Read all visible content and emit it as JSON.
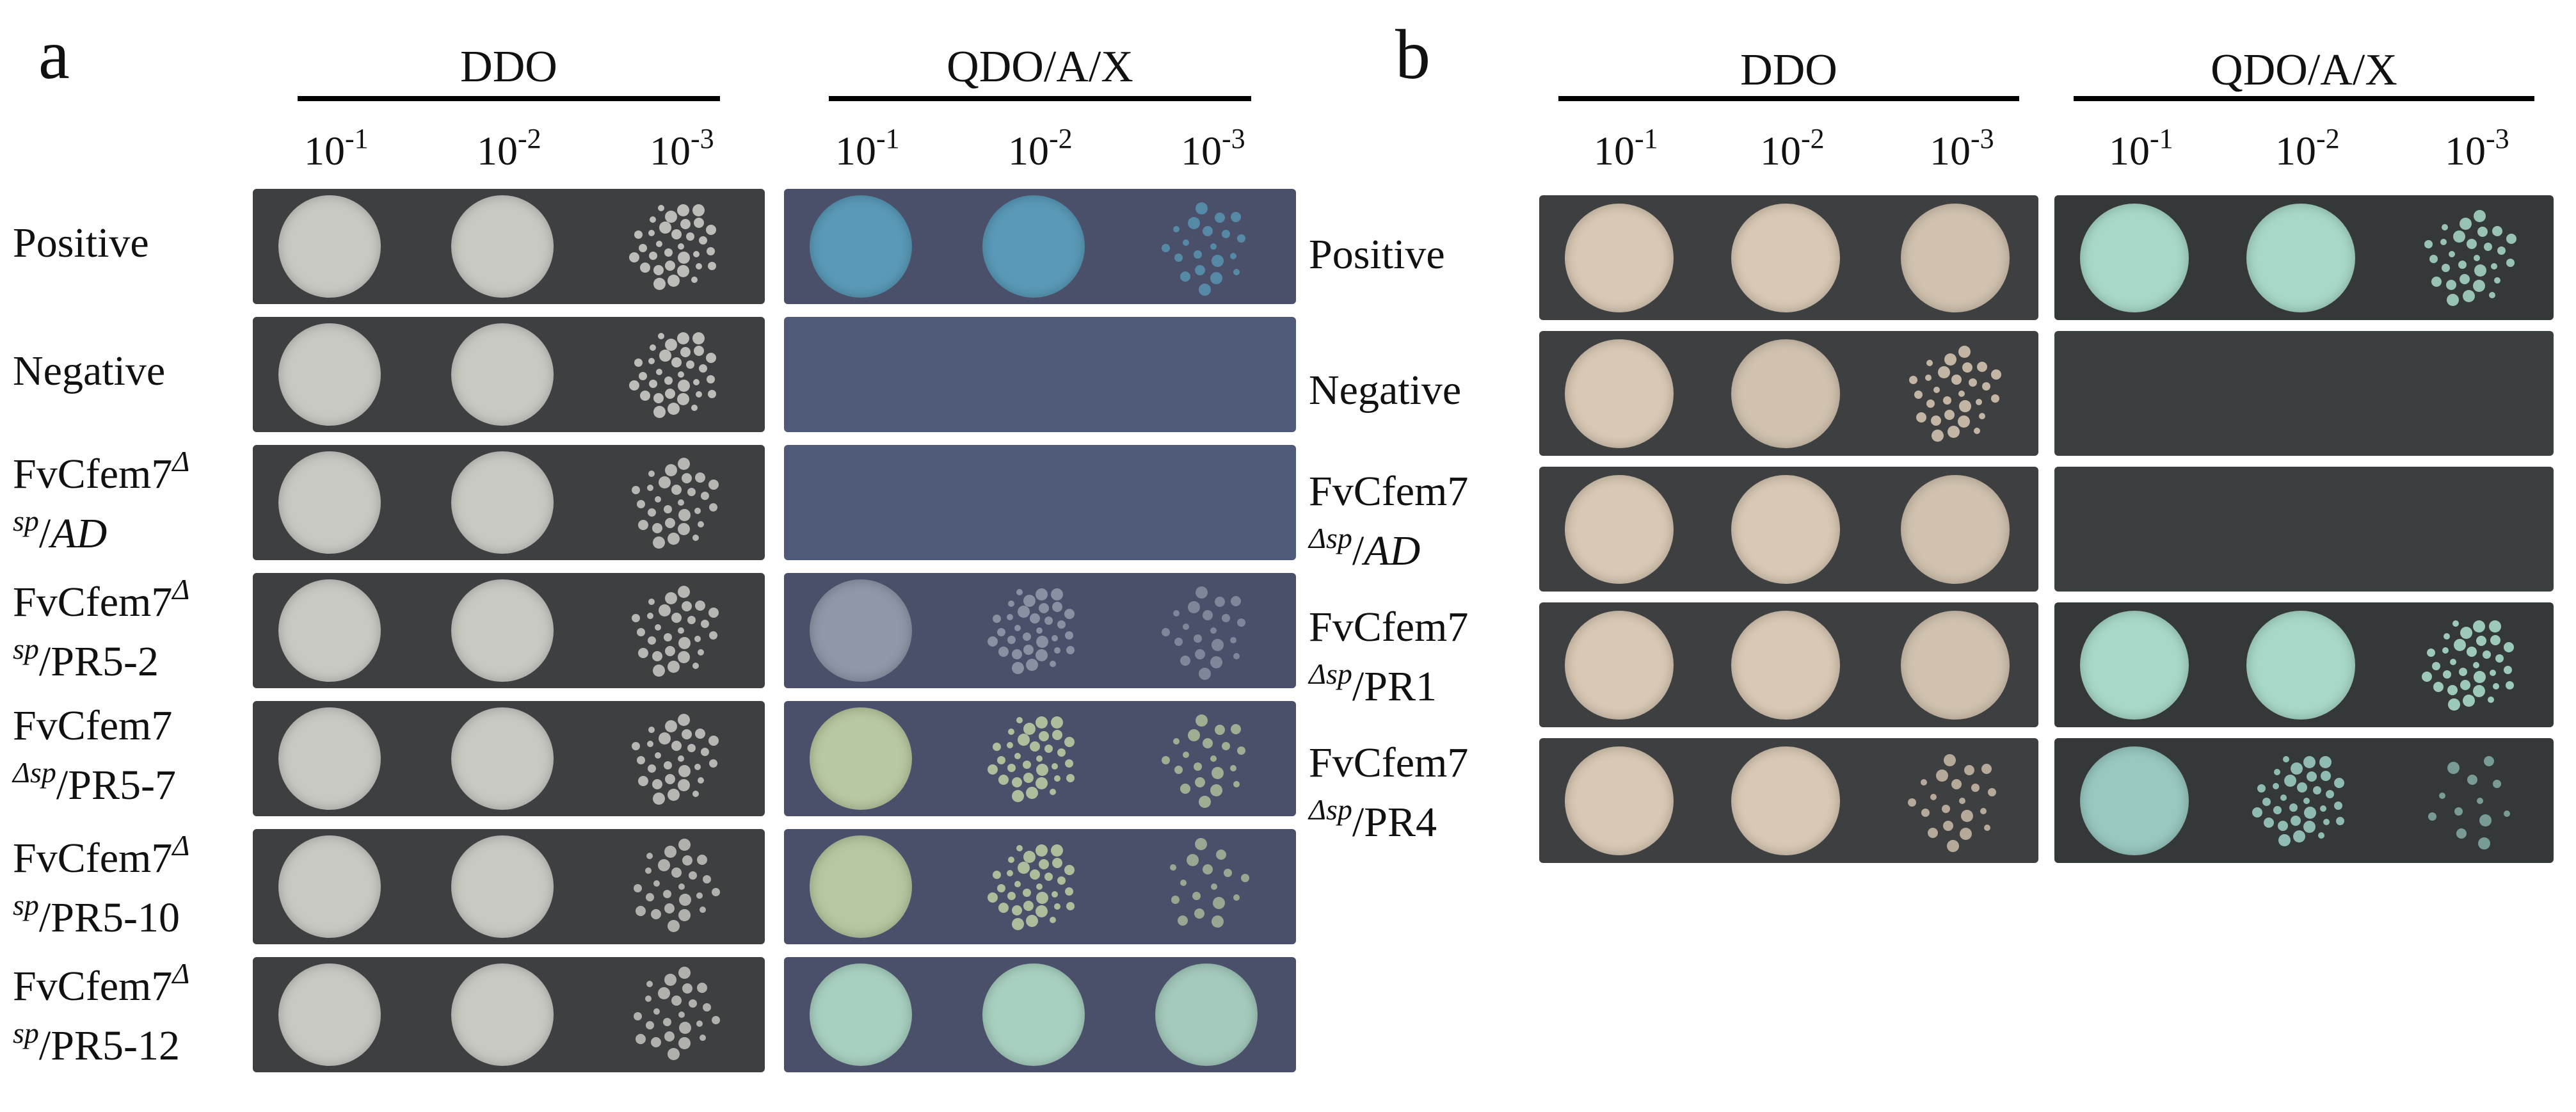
{
  "figure": {
    "panel_a": {
      "letter": "a",
      "group_ddo": "DDO",
      "group_qdo": "QDO/A/X",
      "dilutions": [
        {
          "base": "10",
          "exp": "-1"
        },
        {
          "base": "10",
          "exp": "-2"
        },
        {
          "base": "10",
          "exp": "-3"
        }
      ],
      "rows": [
        {
          "lines": [
            {
              "main": "Positive"
            }
          ],
          "ddo_growth": [
            1,
            1,
            0.8
          ],
          "qdo_growth": [
            1,
            1,
            0.5
          ],
          "qdo_color": "#5a9ab8"
        },
        {
          "lines": [
            {
              "main": "Negative"
            }
          ],
          "ddo_growth": [
            1,
            1,
            0.8
          ],
          "qdo_growth": [
            0,
            0,
            0
          ],
          "qdo_color": "#4f5a78"
        },
        {
          "lines": [
            {
              "main": "FvCfem7",
              "sup": "Δ"
            },
            {
              "sup": "sp",
              "main": "/",
              "italic": "AD"
            }
          ],
          "ddo_growth": [
            1,
            1,
            0.7
          ],
          "qdo_growth": [
            0,
            0,
            0
          ],
          "qdo_color": "#4f5a78"
        },
        {
          "lines": [
            {
              "main": "FvCfem7",
              "sup": "Δ"
            },
            {
              "sup": "sp",
              "main": "/PR5-2"
            }
          ],
          "ddo_growth": [
            1,
            1,
            0.7
          ],
          "qdo_growth": [
            1,
            0.8,
            0.5
          ],
          "qdo_color": "#8e98a8"
        },
        {
          "lines": [
            {
              "main": "FvCfem7"
            },
            {
              "sup": "Δsp",
              "main": "/PR5-7"
            }
          ],
          "ddo_growth": [
            1,
            1,
            0.7
          ],
          "qdo_growth": [
            1,
            0.8,
            0.5
          ],
          "qdo_color": "#b8c8a0"
        },
        {
          "lines": [
            {
              "main": "FvCfem7",
              "sup": "Δ"
            },
            {
              "sup": "sp",
              "main": "/PR5-10"
            }
          ],
          "ddo_growth": [
            1,
            1,
            0.6
          ],
          "qdo_growth": [
            1,
            0.8,
            0.4
          ],
          "qdo_color": "#b6c8a0"
        },
        {
          "lines": [
            {
              "main": "FvCfem7",
              "sup": "Δ"
            },
            {
              "sup": "sp",
              "main": "/PR5-12"
            }
          ],
          "ddo_growth": [
            1,
            1,
            0.6
          ],
          "qdo_growth": [
            1,
            1,
            0.9
          ],
          "qdo_color": "#a8d0c0"
        }
      ]
    },
    "panel_b": {
      "letter": "b",
      "group_ddo": "DDO",
      "group_qdo": "QDO/A/X",
      "dilutions": [
        {
          "base": "10",
          "exp": "-1"
        },
        {
          "base": "10",
          "exp": "-2"
        },
        {
          "base": "10",
          "exp": "-3"
        }
      ],
      "rows": [
        {
          "lines": [
            {
              "main": "Positive"
            }
          ],
          "ddo_growth": [
            1,
            1,
            0.9
          ],
          "qdo_growth": [
            1,
            1,
            0.7
          ],
          "qdo_color": "#a8d8c8"
        },
        {
          "lines": [
            {
              "main": "Negative"
            }
          ],
          "ddo_growth": [
            1,
            0.9,
            0.7
          ],
          "qdo_growth": [
            0,
            0,
            0
          ],
          "qdo_color": "#3c3f40"
        },
        {
          "lines": [
            {
              "main": "FvCfem7"
            },
            {
              "sup": "Δsp",
              "main": "/",
              "italic": "AD"
            }
          ],
          "ddo_growth": [
            1,
            1,
            0.9
          ],
          "qdo_growth": [
            0,
            0,
            0
          ],
          "qdo_color": "#3c3f40"
        },
        {
          "lines": [
            {
              "main": "FvCfem7"
            },
            {
              "sup": "Δsp",
              "main": "/PR1"
            }
          ],
          "ddo_growth": [
            1,
            1,
            0.9
          ],
          "qdo_growth": [
            1,
            1,
            0.8
          ],
          "qdo_color": "#a8d8c8"
        },
        {
          "lines": [
            {
              "main": "FvCfem7"
            },
            {
              "sup": "Δsp",
              "main": "/PR4"
            }
          ],
          "ddo_growth": [
            1,
            1,
            0.5
          ],
          "qdo_growth": [
            1,
            0.8,
            0.3
          ],
          "qdo_color": "#98c8c0"
        }
      ]
    }
  },
  "colors": {
    "plate_dark": "#3e3f40",
    "ddo_colony_a": "#c9c9c4",
    "ddo_colony_b": "#d8c8b4",
    "qdo_plate_a": "#4a4f6a",
    "qdo_plate_b": "#353838"
  }
}
